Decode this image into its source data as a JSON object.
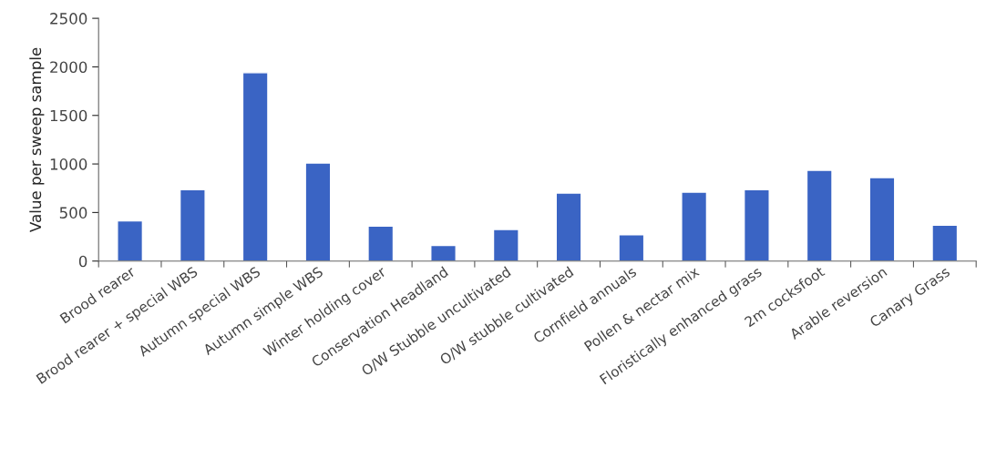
{
  "chart_data": {
    "type": "bar",
    "ylabel": "Value per sweep sample",
    "categories": [
      "Brood rearer",
      "Brood rearer + special WBS",
      "Autumn special WBS",
      "Autumn simple WBS",
      "Winter holding cover",
      "Conservation Headland",
      "O/W Stubble uncultivated",
      "O/W stubble cultivated",
      "Cornfield annuals",
      "Pollen & nectar mix",
      "Floristically enhanced grass",
      "2m cocksfoot",
      "Arable reversion",
      "Canary Grass"
    ],
    "values": [
      415,
      735,
      1940,
      1010,
      360,
      160,
      325,
      700,
      270,
      710,
      735,
      935,
      860,
      370
    ],
    "color": "#3a64c4",
    "ylim": [
      0,
      2500
    ],
    "yticks": [
      0,
      500,
      1000,
      1500,
      2000,
      2500
    ],
    "grid": false,
    "legend": false
  }
}
